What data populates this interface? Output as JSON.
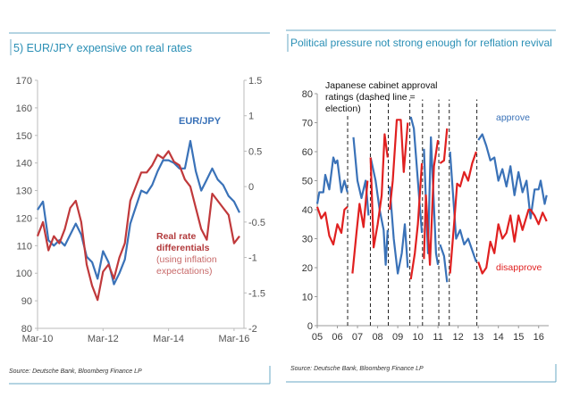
{
  "chart_data": [
    {
      "type": "line",
      "title": "5) EUR/JPY expensive on real rates",
      "source": "Source: Deutsche Bank, Bloomberg Finance LP",
      "x_ticks": [
        "Mar-10",
        "Mar-12",
        "Mar-14",
        "Mar-16"
      ],
      "x_tick_values": [
        "2010-03",
        "2012-03",
        "2014-03",
        "2016-03"
      ],
      "xlim": [
        "2010-03",
        "2016-05"
      ],
      "ylim_left": [
        80,
        170
      ],
      "y_ticks_left": [
        80,
        90,
        100,
        110,
        120,
        130,
        140,
        150,
        160,
        170
      ],
      "ylim_right": [
        -2,
        1.5
      ],
      "y_ticks_right": [
        "-2",
        "-1.5",
        "-1",
        "-0.5",
        "0",
        "0.5",
        "1",
        "1.5"
      ],
      "grid": false,
      "annotations": {
        "eurjpy": "EUR/JPY",
        "real_rate_1": "Real rate",
        "real_rate_2": "differentials",
        "real_rate_3": "(using inflation",
        "real_rate_4": "expectations)"
      },
      "series": [
        {
          "name": "EUR/JPY",
          "axis": "left",
          "color": "#3a72b8",
          "x": [
            "2010-03",
            "2010-05",
            "2010-07",
            "2010-09",
            "2010-11",
            "2011-01",
            "2011-03",
            "2011-05",
            "2011-07",
            "2011-09",
            "2011-11",
            "2012-01",
            "2012-03",
            "2012-05",
            "2012-07",
            "2012-09",
            "2012-11",
            "2013-01",
            "2013-03",
            "2013-05",
            "2013-07",
            "2013-09",
            "2013-11",
            "2014-01",
            "2014-03",
            "2014-05",
            "2014-07",
            "2014-09",
            "2014-11",
            "2015-01",
            "2015-03",
            "2015-05",
            "2015-07",
            "2015-09",
            "2015-11",
            "2016-01",
            "2016-03",
            "2016-05"
          ],
          "values": [
            123,
            126,
            112,
            110,
            112,
            110,
            114,
            118,
            114,
            106,
            104,
            98,
            108,
            104,
            96,
            100,
            105,
            118,
            124,
            130,
            129,
            132,
            137,
            141,
            141,
            140,
            138,
            138,
            148,
            137,
            130,
            134,
            138,
            134,
            132,
            128,
            126,
            122
          ]
        },
        {
          "name": "Real rate differentials (using inflation expectations)",
          "axis": "right",
          "color": "#c0393b",
          "x": [
            "2010-03",
            "2010-05",
            "2010-07",
            "2010-09",
            "2010-11",
            "2011-01",
            "2011-03",
            "2011-05",
            "2011-07",
            "2011-09",
            "2011-11",
            "2012-01",
            "2012-03",
            "2012-05",
            "2012-07",
            "2012-09",
            "2012-11",
            "2013-01",
            "2013-03",
            "2013-05",
            "2013-07",
            "2013-09",
            "2013-11",
            "2014-01",
            "2014-03",
            "2014-05",
            "2014-07",
            "2014-09",
            "2014-11",
            "2015-01",
            "2015-03",
            "2015-05",
            "2015-07",
            "2015-09",
            "2015-11",
            "2016-01",
            "2016-03",
            "2016-05"
          ],
          "values": [
            -0.7,
            -0.5,
            -0.9,
            -0.7,
            -0.8,
            -0.6,
            -0.3,
            -0.2,
            -0.5,
            -1.1,
            -1.4,
            -1.6,
            -1.2,
            -1.1,
            -1.3,
            -1.0,
            -0.8,
            -0.2,
            0.0,
            0.2,
            0.2,
            0.3,
            0.45,
            0.4,
            0.5,
            0.35,
            0.3,
            0.1,
            0.0,
            -0.3,
            -0.6,
            -0.75,
            -0.1,
            -0.2,
            -0.3,
            -0.4,
            -0.8,
            -0.7
          ]
        }
      ]
    },
    {
      "type": "line",
      "title": "Political pressure not strong enough for reflation revival",
      "source": "Source:  Deutsche Bank, Bloomberg Finance LP",
      "x_ticks": [
        "05",
        "06",
        "07",
        "08",
        "09",
        "10",
        "11",
        "12",
        "13",
        "14",
        "15",
        "16"
      ],
      "xlim": [
        2005,
        2016.5
      ],
      "ylim": [
        0,
        80
      ],
      "y_ticks": [
        0,
        10,
        20,
        30,
        40,
        50,
        60,
        70,
        80
      ],
      "grid": false,
      "note_lines": [
        "Japanese cabinet approval",
        "ratings (dashed line =",
        "election)"
      ],
      "elections": [
        2006.51,
        2007.64,
        2008.53,
        2009.6,
        2010.23,
        2011.04,
        2011.56,
        2012.93
      ],
      "series": [
        {
          "name": "approve",
          "color": "#3a72b8",
          "segments": [
            [
              [
                2005.0,
                42
              ],
              [
                2005.1,
                46
              ],
              [
                2005.3,
                46
              ],
              [
                2005.4,
                52
              ],
              [
                2005.6,
                47
              ],
              [
                2005.8,
                58
              ],
              [
                2005.9,
                56
              ],
              [
                2006.0,
                57
              ],
              [
                2006.2,
                46
              ],
              [
                2006.35,
                50
              ],
              [
                2006.5,
                46
              ]
            ],
            [
              [
                2006.8,
                65
              ],
              [
                2007.0,
                50
              ],
              [
                2007.2,
                44
              ],
              [
                2007.4,
                50
              ],
              [
                2007.55,
                38
              ]
            ],
            [
              [
                2007.65,
                58
              ],
              [
                2007.9,
                50
              ],
              [
                2008.1,
                40
              ],
              [
                2008.3,
                33
              ],
              [
                2008.4,
                21
              ],
              [
                2008.5,
                33
              ]
            ],
            [
              [
                2008.6,
                48
              ],
              [
                2008.8,
                30
              ],
              [
                2009.0,
                18
              ],
              [
                2009.2,
                25
              ],
              [
                2009.35,
                35
              ],
              [
                2009.5,
                20
              ]
            ],
            [
              [
                2009.65,
                72
              ],
              [
                2009.8,
                68
              ],
              [
                2010.0,
                50
              ],
              [
                2010.2,
                32
              ]
            ],
            [
              [
                2010.3,
                61
              ],
              [
                2010.5,
                25
              ],
              [
                2010.65,
                65
              ],
              [
                2010.9,
                25
              ],
              [
                2011.0,
                21
              ]
            ],
            [
              [
                2011.1,
                28
              ],
              [
                2011.3,
                24
              ],
              [
                2011.45,
                15
              ]
            ],
            [
              [
                2011.6,
                60
              ],
              [
                2011.9,
                30
              ],
              [
                2012.1,
                33
              ],
              [
                2012.3,
                28
              ],
              [
                2012.5,
                30
              ],
              [
                2012.7,
                26
              ],
              [
                2012.9,
                22
              ]
            ],
            [
              [
                2013.0,
                64
              ],
              [
                2013.2,
                66
              ],
              [
                2013.4,
                62
              ],
              [
                2013.6,
                57
              ],
              [
                2013.8,
                58
              ],
              [
                2014.0,
                50
              ],
              [
                2014.2,
                54
              ],
              [
                2014.4,
                48
              ],
              [
                2014.6,
                55
              ],
              [
                2014.8,
                45
              ],
              [
                2015.0,
                53
              ],
              [
                2015.2,
                46
              ],
              [
                2015.4,
                50
              ],
              [
                2015.6,
                37
              ],
              [
                2015.8,
                47
              ],
              [
                2016.0,
                47
              ],
              [
                2016.1,
                50
              ],
              [
                2016.3,
                42
              ],
              [
                2016.4,
                45
              ]
            ]
          ]
        },
        {
          "name": "disapprove",
          "color": "#e02020",
          "segments": [
            [
              [
                2005.0,
                41
              ],
              [
                2005.2,
                37
              ],
              [
                2005.4,
                39
              ],
              [
                2005.6,
                31
              ],
              [
                2005.8,
                28
              ],
              [
                2006.0,
                35
              ],
              [
                2006.2,
                32
              ],
              [
                2006.35,
                40
              ],
              [
                2006.5,
                41
              ]
            ],
            [
              [
                2006.75,
                18
              ],
              [
                2006.95,
                32
              ],
              [
                2007.1,
                42
              ],
              [
                2007.3,
                34
              ],
              [
                2007.5,
                50
              ]
            ],
            [
              [
                2007.65,
                58
              ],
              [
                2007.8,
                27
              ],
              [
                2008.0,
                35
              ],
              [
                2008.2,
                45
              ],
              [
                2008.35,
                66
              ],
              [
                2008.5,
                58
              ]
            ],
            [
              [
                2008.6,
                40
              ],
              [
                2008.75,
                50
              ],
              [
                2008.95,
                71
              ],
              [
                2009.15,
                71
              ],
              [
                2009.3,
                53
              ],
              [
                2009.5,
                70
              ]
            ],
            [
              [
                2009.65,
                16
              ],
              [
                2009.85,
                25
              ],
              [
                2010.0,
                35
              ],
              [
                2010.2,
                56
              ]
            ],
            [
              [
                2010.3,
                23
              ],
              [
                2010.4,
                45
              ],
              [
                2010.6,
                21
              ],
              [
                2010.8,
                55
              ],
              [
                2011.0,
                64
              ]
            ],
            [
              [
                2011.1,
                56
              ],
              [
                2011.3,
                57
              ],
              [
                2011.45,
                68
              ]
            ],
            [
              [
                2011.6,
                18
              ],
              [
                2011.8,
                35
              ],
              [
                2011.95,
                49
              ],
              [
                2012.1,
                48
              ],
              [
                2012.3,
                53
              ],
              [
                2012.5,
                50
              ],
              [
                2012.7,
                56
              ],
              [
                2012.9,
                60
              ]
            ],
            [
              [
                2013.0,
                22
              ],
              [
                2013.2,
                18
              ],
              [
                2013.4,
                20
              ],
              [
                2013.6,
                29
              ],
              [
                2013.8,
                25
              ],
              [
                2014.0,
                35
              ],
              [
                2014.2,
                30
              ],
              [
                2014.4,
                32
              ],
              [
                2014.6,
                38
              ],
              [
                2014.8,
                29
              ],
              [
                2015.0,
                38
              ],
              [
                2015.2,
                33
              ],
              [
                2015.5,
                40
              ],
              [
                2015.6,
                40
              ],
              [
                2015.8,
                38
              ],
              [
                2016.0,
                35
              ],
              [
                2016.2,
                39
              ],
              [
                2016.4,
                36
              ]
            ]
          ]
        }
      ]
    }
  ]
}
